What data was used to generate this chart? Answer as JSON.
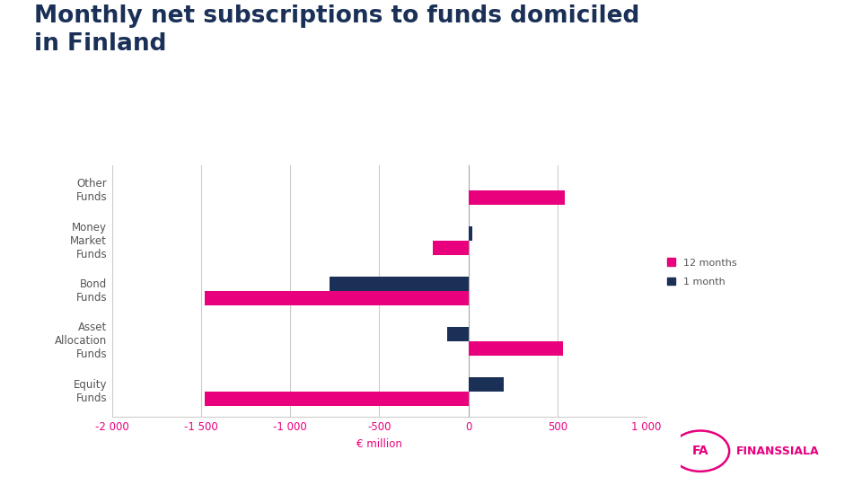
{
  "title": "Monthly net subscriptions to funds domiciled\nin Finland",
  "categories": [
    "Other\nFunds",
    "Money\nMarket\nFunds",
    "Bond\nFunds",
    "Asset\nAllocation\nFunds",
    "Equity\nFunds"
  ],
  "values_12m": [
    540,
    -200,
    -1480,
    530,
    -1480
  ],
  "values_1m": [
    0,
    20,
    -780,
    -120,
    200
  ],
  "color_12m": "#e8007d",
  "color_1m": "#1a3057",
  "xlabel": "€ million",
  "xlim": [
    -2000,
    1000
  ],
  "xticks": [
    -2000,
    -1500,
    -1000,
    -500,
    0,
    500,
    1000
  ],
  "xtick_labels": [
    "-2 000",
    "-1 500",
    "-1 000",
    "-500",
    "0",
    "500",
    "1 000"
  ],
  "legend_12m": "12 months",
  "legend_1m": "1 month",
  "background_color": "#ffffff",
  "title_color": "#1a3057",
  "tick_color": "#e8007d",
  "ylabel_color": "#555555",
  "grid_color": "#cccccc",
  "bar_height": 0.28
}
